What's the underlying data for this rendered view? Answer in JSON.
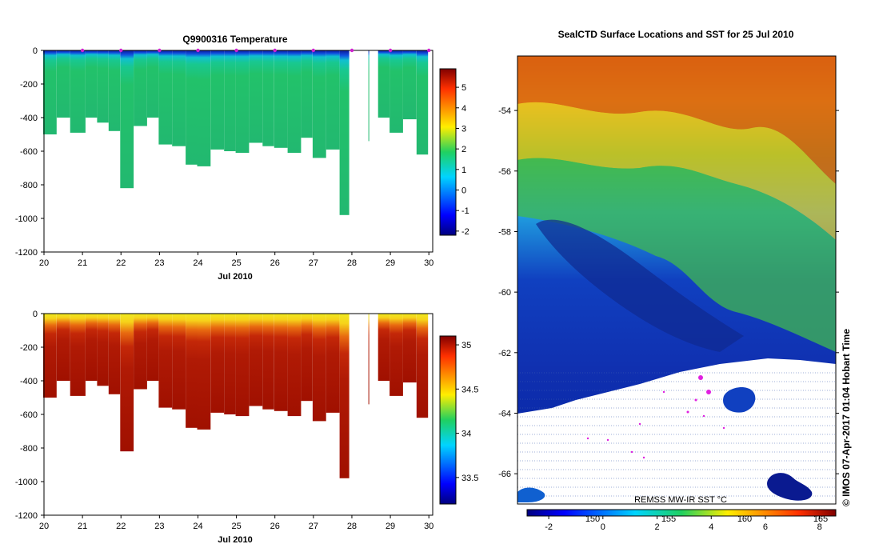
{
  "chart_data": [
    {
      "type": "heatmap",
      "id": "temperature",
      "title": "Q9900316  Temperature",
      "xlabel": "Jul 2010",
      "xlim": [
        20,
        30.1
      ],
      "x_ticks": [
        "20",
        "21",
        "22",
        "23",
        "24",
        "25",
        "26",
        "27",
        "28",
        "29",
        "30"
      ],
      "ylim": [
        -1200,
        0
      ],
      "y_ticks": [
        "0",
        "-200",
        "-400",
        "-600",
        "-800",
        "-1000",
        "-1200"
      ],
      "colorbar": {
        "min": -2.2,
        "max": 5.9,
        "ticks": [
          "-2",
          "-1",
          "0",
          "1",
          "2",
          "3",
          "4",
          "5"
        ]
      },
      "profiles": {
        "day": [
          20.1,
          20.45,
          20.8,
          21.2,
          21.5,
          21.8,
          22.1,
          22.45,
          22.8,
          23.1,
          23.45,
          23.8,
          24.1,
          24.45,
          24.8,
          25.1,
          25.45,
          25.8,
          26.1,
          26.45,
          26.8,
          27.1,
          27.45,
          27.8,
          28.55,
          28.8,
          29.1,
          29.45,
          29.8
        ],
        "max_depth": [
          500,
          400,
          490,
          400,
          430,
          480,
          820,
          450,
          400,
          560,
          570,
          680,
          690,
          590,
          600,
          610,
          550,
          570,
          580,
          610,
          520,
          640,
          590,
          980,
          540,
          400,
          490,
          410,
          620
        ],
        "surface_temp": [
          -1.5,
          -1.6,
          -1.7,
          -1.6,
          -1.5,
          -1.6,
          -1.7,
          -1.5,
          -1.6,
          -1.6,
          -1.5,
          -1.6,
          -1.7,
          -1.6,
          -1.5,
          -1.6,
          -1.7,
          -1.5,
          -1.6,
          -1.6,
          -1.5,
          -1.7,
          -1.6,
          -1.5,
          -1.6,
          -1.5,
          -1.7,
          -1.6,
          -1.5
        ],
        "deep_temp": [
          1.7,
          1.7,
          1.8,
          1.8,
          1.7,
          1.8,
          1.7,
          1.8,
          1.8,
          1.9,
          1.8,
          1.8,
          1.7,
          1.8,
          1.8,
          1.8,
          1.9,
          1.8,
          1.8,
          1.8,
          1.9,
          1.8,
          1.8,
          1.8,
          1.9,
          1.9,
          1.8,
          1.8,
          1.8
        ]
      }
    },
    {
      "type": "heatmap",
      "id": "salinity",
      "title": "",
      "xlabel": "Jul 2010",
      "xlim": [
        20,
        30.1
      ],
      "x_ticks": [
        "20",
        "21",
        "22",
        "23",
        "24",
        "25",
        "26",
        "27",
        "28",
        "29",
        "30"
      ],
      "ylim": [
        -1200,
        0
      ],
      "y_ticks": [
        "0",
        "-200",
        "-400",
        "-600",
        "-800",
        "-1000",
        "-1200"
      ],
      "colorbar": {
        "min": 33.2,
        "max": 35.1,
        "ticks": [
          "33.5",
          "34",
          "34.5",
          "35"
        ]
      }
    },
    {
      "type": "heatmap",
      "id": "sst-map",
      "title": "SealCTD Surface Locations and SST for 25 Jul 2010",
      "ylim": [
        -67,
        -52.2
      ],
      "y_ticks": [
        "-54",
        "-56",
        "-58",
        "-60",
        "-62",
        "-64",
        "-66"
      ],
      "colorbar": {
        "min": -2.8,
        "max": 8.6,
        "ticks": [
          "-2",
          "0",
          "2",
          "4",
          "6",
          "8"
        ],
        "secondary_ticks": [
          "150",
          "155",
          "160",
          "165"
        ]
      },
      "colorbar_label": "REMSS MW-IR SST °C"
    }
  ],
  "watermark": "©  IMOS 07-Apr-2017 01:04 Hobart Time"
}
